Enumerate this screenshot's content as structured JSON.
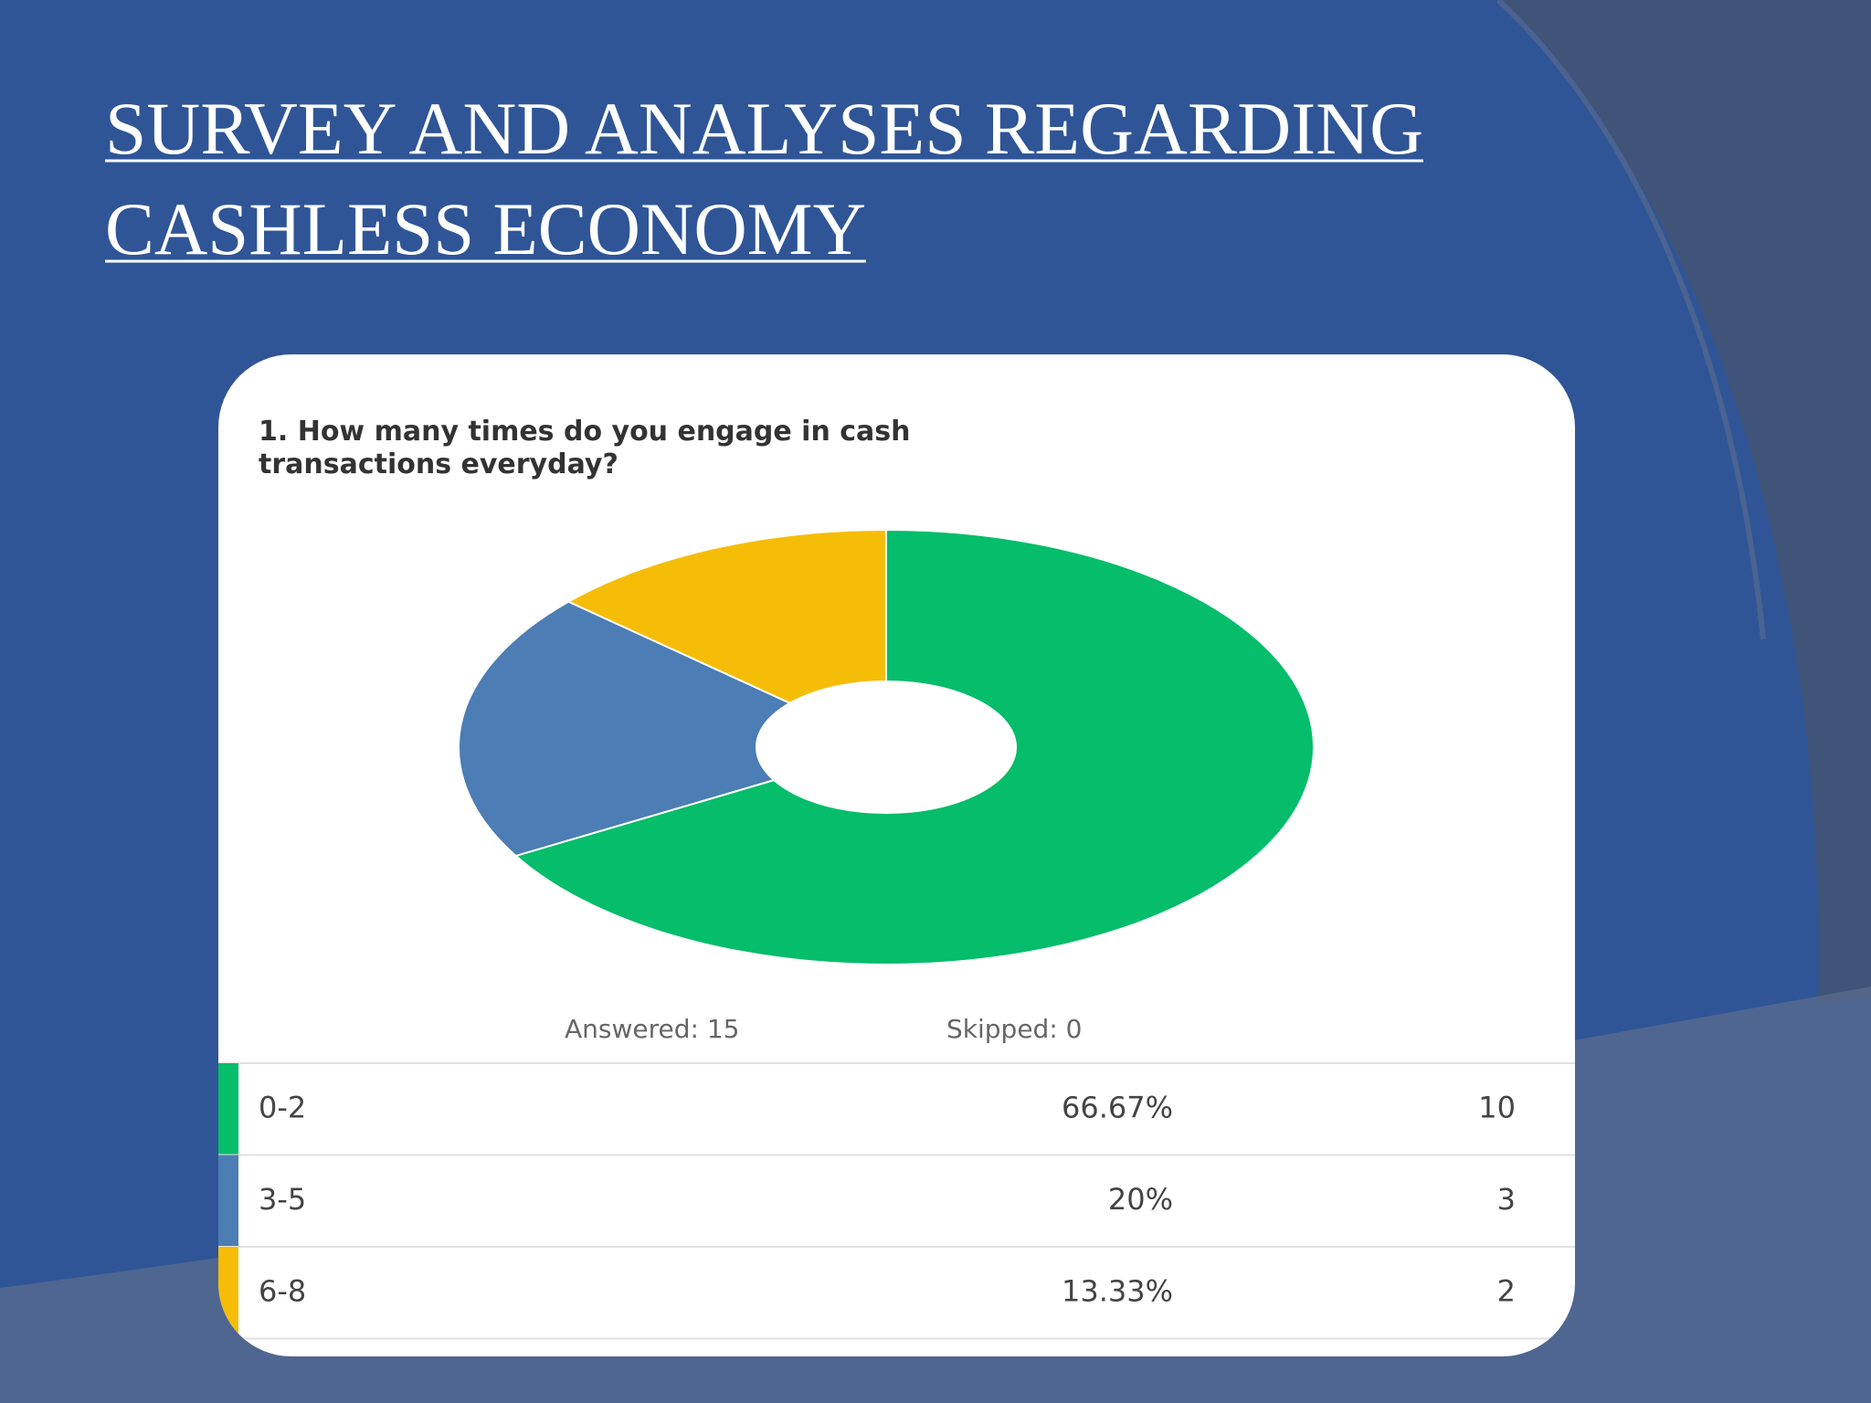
{
  "slide_title": [
    "SURVEY AND ANALYSES REGARDING",
    "CASHLESS ECONOMY"
  ],
  "chart_data": {
    "type": "pie",
    "title": [
      "1. How many times do you engage in cash",
      "transactions everyday?"
    ],
    "categories": [
      "0-2",
      "3-5",
      "6-8"
    ],
    "values": [
      66.67,
      20,
      13.33
    ],
    "value_labels": [
      "66.67%",
      "20%",
      "13.33%"
    ],
    "colors": [
      "#05bd6a",
      "#4c7db4",
      "#f6bd08"
    ],
    "donut": true,
    "counts": [
      10,
      3,
      2
    ],
    "answered": "Answered: 15",
    "skipped": "Skipped: 0"
  }
}
